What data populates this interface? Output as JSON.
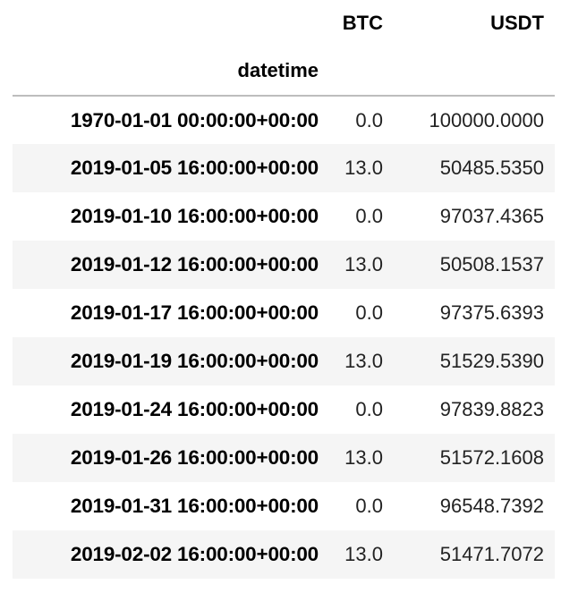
{
  "table": {
    "columns": [
      "BTC",
      "USDT"
    ],
    "index_name": "datetime",
    "rows": [
      {
        "datetime": "1970-01-01 00:00:00+00:00",
        "BTC": "0.0",
        "USDT": "100000.0000"
      },
      {
        "datetime": "2019-01-05 16:00:00+00:00",
        "BTC": "13.0",
        "USDT": "50485.5350"
      },
      {
        "datetime": "2019-01-10 16:00:00+00:00",
        "BTC": "0.0",
        "USDT": "97037.4365"
      },
      {
        "datetime": "2019-01-12 16:00:00+00:00",
        "BTC": "13.0",
        "USDT": "50508.1537"
      },
      {
        "datetime": "2019-01-17 16:00:00+00:00",
        "BTC": "0.0",
        "USDT": "97375.6393"
      },
      {
        "datetime": "2019-01-19 16:00:00+00:00",
        "BTC": "13.0",
        "USDT": "51529.5390"
      },
      {
        "datetime": "2019-01-24 16:00:00+00:00",
        "BTC": "0.0",
        "USDT": "97839.8823"
      },
      {
        "datetime": "2019-01-26 16:00:00+00:00",
        "BTC": "13.0",
        "USDT": "51572.1608"
      },
      {
        "datetime": "2019-01-31 16:00:00+00:00",
        "BTC": "0.0",
        "USDT": "96548.7392"
      },
      {
        "datetime": "2019-02-02 16:00:00+00:00",
        "BTC": "13.0",
        "USDT": "51471.7072"
      }
    ]
  }
}
